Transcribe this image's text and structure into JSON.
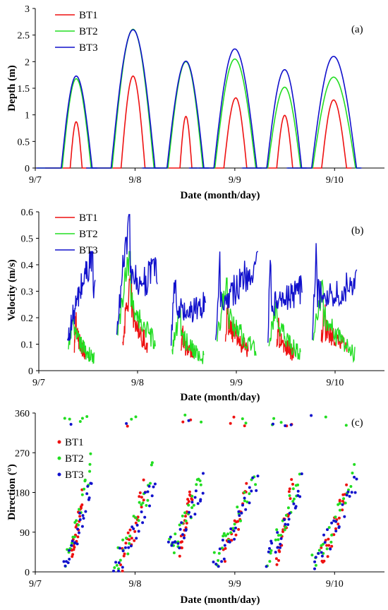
{
  "chart_data": [
    {
      "type": "line",
      "panel_label": "(a)",
      "xlabel": "Date (month/day)",
      "ylabel": "Depth (m)",
      "x_ticks": [
        "9/7",
        "9/8",
        "9/9",
        "9/10"
      ],
      "x_tick_values": [
        0,
        1,
        2,
        3
      ],
      "xlim": [
        0,
        3.5
      ],
      "ylim": [
        0,
        3
      ],
      "y_ticks": [
        "0",
        "0.5",
        "1",
        "1.5",
        "2",
        "2.5",
        "3"
      ],
      "y_tick_values": [
        0,
        0.5,
        1,
        1.5,
        2,
        2.5,
        3
      ],
      "legend_position": "top-left",
      "series": [
        {
          "name": "BT1",
          "color": "#ee1111",
          "segments": [
            {
              "start": 0.35,
              "end": 0.47,
              "peak_x": 0.41,
              "peak": 0.87
            },
            {
              "start": 0.86,
              "end": 1.1,
              "peak_x": 0.98,
              "peak": 1.73
            },
            {
              "start": 1.45,
              "end": 1.57,
              "peak_x": 1.51,
              "peak": 0.97
            },
            {
              "start": 1.89,
              "end": 2.12,
              "peak_x": 2.01,
              "peak": 1.32
            },
            {
              "start": 2.42,
              "end": 2.58,
              "peak_x": 2.5,
              "peak": 0.99
            },
            {
              "start": 2.87,
              "end": 3.12,
              "peak_x": 2.99,
              "peak": 1.28
            }
          ]
        },
        {
          "name": "BT2",
          "color": "#22dd22",
          "segments": [
            {
              "start": 0.27,
              "end": 0.56,
              "peak_x": 0.41,
              "peak": 1.68
            },
            {
              "start": 0.77,
              "end": 1.19,
              "peak_x": 0.98,
              "peak": 2.61
            },
            {
              "start": 1.33,
              "end": 1.68,
              "peak_x": 1.51,
              "peak": 2.0
            },
            {
              "start": 1.8,
              "end": 2.21,
              "peak_x": 2.0,
              "peak": 2.05
            },
            {
              "start": 2.33,
              "end": 2.66,
              "peak_x": 2.5,
              "peak": 1.52
            },
            {
              "start": 2.78,
              "end": 3.21,
              "peak_x": 2.99,
              "peak": 1.71
            }
          ]
        },
        {
          "name": "BT3",
          "color": "#1111cc",
          "segments": [
            {
              "start": 0.26,
              "end": 0.57,
              "peak_x": 0.41,
              "peak": 1.73
            },
            {
              "start": 0.76,
              "end": 1.2,
              "peak_x": 0.98,
              "peak": 2.6
            },
            {
              "start": 1.32,
              "end": 1.69,
              "peak_x": 1.51,
              "peak": 2.01
            },
            {
              "start": 1.79,
              "end": 2.22,
              "peak_x": 2.0,
              "peak": 2.24
            },
            {
              "start": 2.32,
              "end": 2.67,
              "peak_x": 2.5,
              "peak": 1.85
            },
            {
              "start": 2.77,
              "end": 3.22,
              "peak_x": 2.99,
              "peak": 2.1
            }
          ]
        }
      ]
    },
    {
      "type": "line",
      "panel_label": "(b)",
      "xlabel": "Date (month/day)",
      "ylabel": "Velocity (m/s)",
      "x_ticks": [
        "9/7",
        "9/8",
        "9/9",
        "9/10"
      ],
      "x_tick_values": [
        0,
        1,
        2,
        3
      ],
      "xlim": [
        0,
        3.5
      ],
      "ylim": [
        0,
        0.6
      ],
      "y_ticks": [
        "0",
        "0.1",
        "0.2",
        "0.3",
        "0.4",
        "0.5",
        "0.6"
      ],
      "y_tick_values": [
        0,
        0.1,
        0.2,
        0.3,
        0.4,
        0.5,
        0.6
      ],
      "legend_position": "top-left",
      "series": [
        {
          "name": "BT1",
          "color": "#ee1111",
          "segments": [
            {
              "start": 0.36,
              "end": 0.47,
              "level": 0.06,
              "peak_x": 0.38,
              "peak": 0.23,
              "end_level": 0.06
            },
            {
              "start": 0.85,
              "end": 1.1,
              "level": 0.1,
              "peak_x": 0.94,
              "peak": 0.36,
              "end_level": 0.08
            },
            {
              "start": 1.44,
              "end": 1.57,
              "level": 0.07,
              "peak_x": 1.46,
              "peak": 0.17,
              "end_level": 0.04
            },
            {
              "start": 1.89,
              "end": 2.12,
              "level": 0.1,
              "peak_x": 1.92,
              "peak": 0.28,
              "end_level": 0.06
            },
            {
              "start": 2.41,
              "end": 2.58,
              "level": 0.08,
              "peak_x": 2.43,
              "peak": 0.2,
              "end_level": 0.05
            },
            {
              "start": 2.86,
              "end": 3.12,
              "level": 0.1,
              "peak_x": 2.9,
              "peak": 0.25,
              "end_level": 0.07
            }
          ]
        },
        {
          "name": "BT2",
          "color": "#22dd22",
          "segments": [
            {
              "start": 0.3,
              "end": 0.56,
              "level": 0.07,
              "peak_x": 0.36,
              "peak": 0.22,
              "end_level": 0.03
            },
            {
              "start": 0.8,
              "end": 1.18,
              "level": 0.12,
              "peak_x": 0.93,
              "peak": 0.45,
              "end_level": 0.08
            },
            {
              "start": 1.35,
              "end": 1.67,
              "level": 0.07,
              "peak_x": 1.44,
              "peak": 0.23,
              "end_level": 0.03
            },
            {
              "start": 1.8,
              "end": 2.2,
              "level": 0.1,
              "peak_x": 1.91,
              "peak": 0.35,
              "end_level": 0.06
            },
            {
              "start": 2.33,
              "end": 2.65,
              "level": 0.08,
              "peak_x": 2.41,
              "peak": 0.28,
              "end_level": 0.05
            },
            {
              "start": 2.78,
              "end": 3.2,
              "level": 0.1,
              "peak_x": 2.88,
              "peak": 0.34,
              "end_level": 0.04
            }
          ]
        },
        {
          "name": "BT3",
          "color": "#1111cc",
          "segments": [
            {
              "start": 0.29,
              "end": 0.57,
              "level": 0.1,
              "peak_x": 0.55,
              "peak": 0.45,
              "end_level": 0.3
            },
            {
              "start": 0.79,
              "end": 1.2,
              "level": 0.12,
              "peak_x": 0.92,
              "peak": 0.59,
              "end_level": 0.36
            },
            {
              "start": 1.34,
              "end": 1.69,
              "level": 0.08,
              "peak_x": 1.39,
              "peak": 0.41,
              "end_level": 0.24
            },
            {
              "start": 1.79,
              "end": 2.22,
              "level": 0.1,
              "peak_x": 1.84,
              "peak": 0.45,
              "end_level": 0.4
            },
            {
              "start": 2.32,
              "end": 2.67,
              "level": 0.09,
              "peak_x": 2.35,
              "peak": 0.44,
              "end_level": 0.3
            },
            {
              "start": 2.77,
              "end": 3.22,
              "level": 0.1,
              "peak_x": 2.82,
              "peak": 0.49,
              "end_level": 0.33
            }
          ]
        }
      ]
    },
    {
      "type": "scatter",
      "panel_label": "(c)",
      "xlabel": "Date (month/day)",
      "ylabel": "Direction (°)",
      "x_ticks": [
        "9/7",
        "9/8",
        "9/9",
        "9/10"
      ],
      "x_tick_values": [
        0,
        1,
        2,
        3
      ],
      "xlim": [
        0,
        3.5
      ],
      "ylim": [
        0,
        360
      ],
      "y_ticks": [
        "0",
        "90",
        "180",
        "270",
        "360"
      ],
      "y_tick_values": [
        0,
        90,
        180,
        270,
        360
      ],
      "legend_position": "top-left",
      "series": [
        {
          "name": "BT1",
          "color": "#ee1111",
          "segments": [
            {
              "start": 0.36,
              "end": 0.47,
              "dir_start": 35,
              "dir_end": 170
            },
            {
              "start": 0.86,
              "end": 1.1,
              "dir_start": 20,
              "dir_end": 200
            },
            {
              "start": 1.45,
              "end": 1.57,
              "dir_start": 60,
              "dir_end": 190
            },
            {
              "start": 1.89,
              "end": 2.12,
              "dir_start": 40,
              "dir_end": 180
            },
            {
              "start": 2.42,
              "end": 2.58,
              "dir_start": 40,
              "dir_end": 200
            },
            {
              "start": 2.87,
              "end": 3.12,
              "dir_start": 30,
              "dir_end": 190
            }
          ]
        },
        {
          "name": "BT2",
          "color": "#22dd22",
          "segments": [
            {
              "start": 0.3,
              "end": 0.56,
              "dir_start": 30,
              "dir_end": 250
            },
            {
              "start": 0.8,
              "end": 1.18,
              "dir_start": 20,
              "dir_end": 230
            },
            {
              "start": 1.35,
              "end": 1.67,
              "dir_start": 50,
              "dir_end": 220
            },
            {
              "start": 1.8,
              "end": 2.2,
              "dir_start": 40,
              "dir_end": 210
            },
            {
              "start": 2.33,
              "end": 2.65,
              "dir_start": 30,
              "dir_end": 230
            },
            {
              "start": 2.78,
              "end": 3.2,
              "dir_start": 20,
              "dir_end": 230
            }
          ]
        },
        {
          "name": "BT3",
          "color": "#1111cc",
          "segments": [
            {
              "start": 0.29,
              "end": 0.57,
              "dir_start": 20,
              "dir_end": 205
            },
            {
              "start": 0.79,
              "end": 1.2,
              "dir_start": 10,
              "dir_end": 215
            },
            {
              "start": 1.34,
              "end": 1.69,
              "dir_start": 50,
              "dir_end": 205
            },
            {
              "start": 1.79,
              "end": 2.22,
              "dir_start": 25,
              "dir_end": 215
            },
            {
              "start": 2.32,
              "end": 2.67,
              "dir_start": 35,
              "dir_end": 205
            },
            {
              "start": 2.77,
              "end": 3.22,
              "dir_start": 20,
              "dir_end": 215
            }
          ]
        }
      ]
    }
  ]
}
